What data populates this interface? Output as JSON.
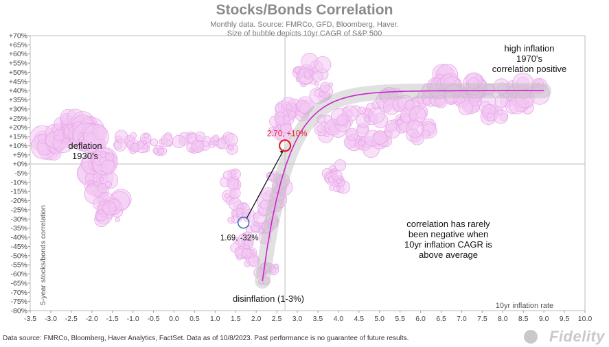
{
  "title": "Stocks/Bonds Correlation",
  "subtitle_line1": "Monthly data.  Source: FMRCo, GFD, Bloomberg, Haver.",
  "subtitle_line2": "Size of bubble depicts 10yr CAGR of S&P 500",
  "footer": "Data source: FMRCo, Bloomberg, Haver Analytics, FactSet. Data as of 10/8/2023. Past performance is no guarantee of future results.",
  "brand": "Fidelity",
  "colors": {
    "bubble_fill": "#f3c9f3",
    "bubble_edge": "#e9a6e9",
    "trend": "#cc22cc",
    "highlight": "#e0202a",
    "past_point": "#3a6fb0"
  },
  "chart_data": {
    "type": "scatter",
    "xlabel": "10yr inflation rate",
    "ylabel": "5-year stocks/bonds correlation",
    "xlim": [
      -3.5,
      10.0
    ],
    "ylim": [
      -80,
      70
    ],
    "x_ticks": [
      "-3.5",
      "-3.0",
      "-2.5",
      "-2.0",
      "-1.5",
      "-1.0",
      "-0.5",
      "0.0",
      "0.5",
      "1.0",
      "1.5",
      "2.0",
      "2.5",
      "3.0",
      "3.5",
      "4.0",
      "4.5",
      "5.0",
      "5.5",
      "6.0",
      "6.5",
      "7.0",
      "7.5",
      "8.0",
      "8.5",
      "9.0",
      "9.5",
      "10.0"
    ],
    "y_ticks": [
      "+70%",
      "+65%",
      "+60%",
      "+55%",
      "+50%",
      "+45%",
      "+40%",
      "+35%",
      "+30%",
      "+25%",
      "+20%",
      "+15%",
      "+10%",
      "+5%",
      "+0%",
      "-5%",
      "-10%",
      "-15%",
      "-20%",
      "-25%",
      "-30%",
      "-35%",
      "-40%",
      "-45%",
      "-50%",
      "-55%",
      "-60%",
      "-65%",
      "-70%",
      "-75%",
      "-80%"
    ],
    "bubble_clusters": [
      {
        "x": -3.0,
        "y": 10,
        "r": 5
      },
      {
        "x": -2.8,
        "y": 14,
        "r": 4
      },
      {
        "x": -2.6,
        "y": 20,
        "r": 3
      },
      {
        "x": -2.4,
        "y": 22,
        "r": 4
      },
      {
        "x": -2.2,
        "y": 18,
        "r": 5
      },
      {
        "x": -2.0,
        "y": 14,
        "r": 5
      },
      {
        "x": -1.9,
        "y": -4,
        "r": 5
      },
      {
        "x": -1.8,
        "y": -12,
        "r": 4
      },
      {
        "x": -1.7,
        "y": 2,
        "r": 5
      },
      {
        "x": -1.5,
        "y": -22,
        "r": 4
      },
      {
        "x": -1.6,
        "y": -26,
        "r": 3
      },
      {
        "x": -1.2,
        "y": 12,
        "r": 2
      },
      {
        "x": -0.8,
        "y": 11,
        "r": 2
      },
      {
        "x": -0.3,
        "y": 11,
        "r": 2
      },
      {
        "x": 0.3,
        "y": 11,
        "r": 2
      },
      {
        "x": 0.8,
        "y": 12,
        "r": 2
      },
      {
        "x": 1.2,
        "y": 12,
        "r": 2
      },
      {
        "x": 1.4,
        "y": -8,
        "r": 2
      },
      {
        "x": 1.5,
        "y": -20,
        "r": 2
      },
      {
        "x": 1.6,
        "y": -28,
        "r": 2
      },
      {
        "x": 1.7,
        "y": -45,
        "r": 2
      },
      {
        "x": 1.8,
        "y": -52,
        "r": 2
      },
      {
        "x": 2.0,
        "y": -38,
        "r": 2
      },
      {
        "x": 2.2,
        "y": -30,
        "r": 2
      },
      {
        "x": 2.3,
        "y": -60,
        "r": 2
      },
      {
        "x": 2.4,
        "y": -20,
        "r": 3
      },
      {
        "x": 2.5,
        "y": -10,
        "r": 3
      },
      {
        "x": 2.6,
        "y": 20,
        "r": 3
      },
      {
        "x": 2.8,
        "y": 28,
        "r": 3
      },
      {
        "x": 3.0,
        "y": 30,
        "r": 3
      },
      {
        "x": 3.2,
        "y": 48,
        "r": 2
      },
      {
        "x": 3.4,
        "y": 52,
        "r": 3
      },
      {
        "x": 3.6,
        "y": 40,
        "r": 3
      },
      {
        "x": 3.8,
        "y": 20,
        "r": 3
      },
      {
        "x": 3.9,
        "y": -5,
        "r": 2
      },
      {
        "x": 4.0,
        "y": -10,
        "r": 2
      },
      {
        "x": 4.2,
        "y": 25,
        "r": 3
      },
      {
        "x": 4.5,
        "y": 15,
        "r": 3
      },
      {
        "x": 4.8,
        "y": 28,
        "r": 3
      },
      {
        "x": 5.0,
        "y": 12,
        "r": 3
      },
      {
        "x": 5.3,
        "y": 35,
        "r": 3
      },
      {
        "x": 5.5,
        "y": 22,
        "r": 3
      },
      {
        "x": 5.8,
        "y": 30,
        "r": 3
      },
      {
        "x": 6.0,
        "y": 18,
        "r": 3
      },
      {
        "x": 6.3,
        "y": 38,
        "r": 3
      },
      {
        "x": 6.6,
        "y": 45,
        "r": 4
      },
      {
        "x": 6.9,
        "y": 40,
        "r": 4
      },
      {
        "x": 7.2,
        "y": 35,
        "r": 3
      },
      {
        "x": 7.5,
        "y": 42,
        "r": 4
      },
      {
        "x": 7.8,
        "y": 30,
        "r": 3
      },
      {
        "x": 8.1,
        "y": 38,
        "r": 3
      },
      {
        "x": 8.4,
        "y": 33,
        "r": 3
      },
      {
        "x": 8.7,
        "y": 40,
        "r": 4
      }
    ],
    "trend_curve": {
      "from_x": 2.15,
      "to_x": 9.0,
      "y_start": -66,
      "y_end": 40
    },
    "annotations": {
      "current_point": {
        "x": 2.7,
        "y": 10,
        "label": "2.70, +10%"
      },
      "past_point": {
        "x": 1.69,
        "y": -32,
        "label": "1.69, -32%"
      },
      "deflation": [
        "deflation",
        "1930's"
      ],
      "high_inflation": [
        "high inflation",
        "1970's",
        "correlation positive"
      ],
      "negative_note": [
        "correlation has rarely",
        "been negative when",
        "10yr inflation CAGR is",
        "above average"
      ],
      "disinflation": "disinflation (1-3%)"
    }
  }
}
